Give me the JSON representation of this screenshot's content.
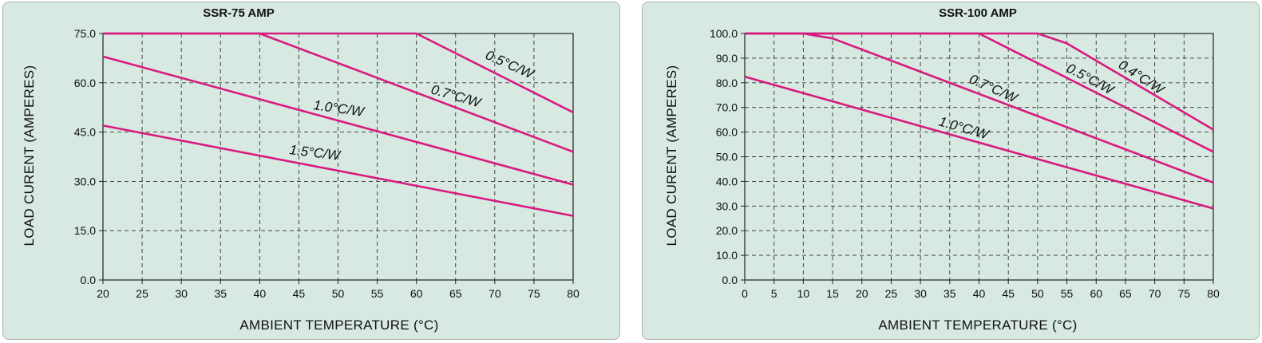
{
  "chart_data": [
    {
      "type": "line",
      "title": "SSR-75 AMP",
      "xlabel": "AMBIENT  TEMPERATURE (°C)",
      "ylabel": "LOAD CURENT (AMPERES)",
      "xlim": [
        20,
        80
      ],
      "ylim": [
        0,
        75
      ],
      "x_ticks": [
        20,
        25,
        30,
        35,
        40,
        45,
        50,
        55,
        60,
        65,
        70,
        75,
        80
      ],
      "y_ticks": [
        0,
        15,
        30,
        45,
        60,
        75
      ],
      "y_tick_labels": [
        "0.0",
        "15.0",
        "30.0",
        "45.0",
        "60.0",
        "75.0"
      ],
      "grid": true,
      "line_color": "#d81b7f",
      "series": [
        {
          "name": "0.5°C/W",
          "x": [
            20,
            60,
            80
          ],
          "y": [
            75,
            75,
            51
          ]
        },
        {
          "name": "0.7°C/W",
          "x": [
            20,
            40,
            80
          ],
          "y": [
            75,
            75,
            39
          ]
        },
        {
          "name": "1.0°C/W",
          "x": [
            20,
            80
          ],
          "y": [
            68,
            29
          ]
        },
        {
          "name": "1.5°C/W",
          "x": [
            20,
            80
          ],
          "y": [
            47,
            19.5
          ]
        }
      ]
    },
    {
      "type": "line",
      "title": "SSR-100 AMP",
      "xlabel": "AMBIENT  TEMPERATURE (°C)",
      "ylabel": "LOAD CURENT (AMPERES)",
      "xlim": [
        0,
        80
      ],
      "ylim": [
        0,
        100
      ],
      "x_ticks": [
        0,
        5,
        10,
        15,
        20,
        25,
        30,
        35,
        40,
        45,
        50,
        55,
        60,
        65,
        70,
        75,
        80
      ],
      "y_ticks": [
        0,
        10,
        20,
        30,
        40,
        50,
        60,
        70,
        80,
        90,
        100
      ],
      "y_tick_labels": [
        "0.0",
        "10.0",
        "20.0",
        "30.0",
        "40.0",
        "50.0",
        "60.0",
        "70.0",
        "80.0",
        "90.0",
        "100.0"
      ],
      "grid": true,
      "line_color": "#d81b7f",
      "series": [
        {
          "name": "0.4°C/W",
          "x": [
            0,
            50,
            55,
            80
          ],
          "y": [
            100,
            100,
            96,
            61
          ]
        },
        {
          "name": "0.5°C/W",
          "x": [
            0,
            40,
            80
          ],
          "y": [
            100,
            100,
            52
          ]
        },
        {
          "name": "0.7°C/W",
          "x": [
            0,
            10,
            15,
            80
          ],
          "y": [
            100,
            100,
            98,
            39.5
          ]
        },
        {
          "name": "1.0°C/W",
          "x": [
            0,
            80
          ],
          "y": [
            82.5,
            29
          ]
        }
      ]
    }
  ]
}
